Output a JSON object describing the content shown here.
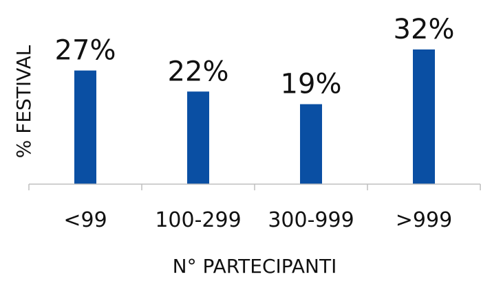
{
  "chart_data": {
    "type": "bar",
    "categories": [
      "<99",
      "100-299",
      "300-999",
      ">999"
    ],
    "values": [
      27,
      22,
      19,
      32
    ],
    "value_labels": [
      "27%",
      "22%",
      "19%",
      "32%"
    ],
    "ylim": [
      0,
      32
    ],
    "xlabel": "N° PARTECIPANTI",
    "ylabel": "% FESTIVAL",
    "bar_color": "#0a4fa3",
    "axis_color": "#bfbfbf",
    "grid": false,
    "legend": "none"
  }
}
